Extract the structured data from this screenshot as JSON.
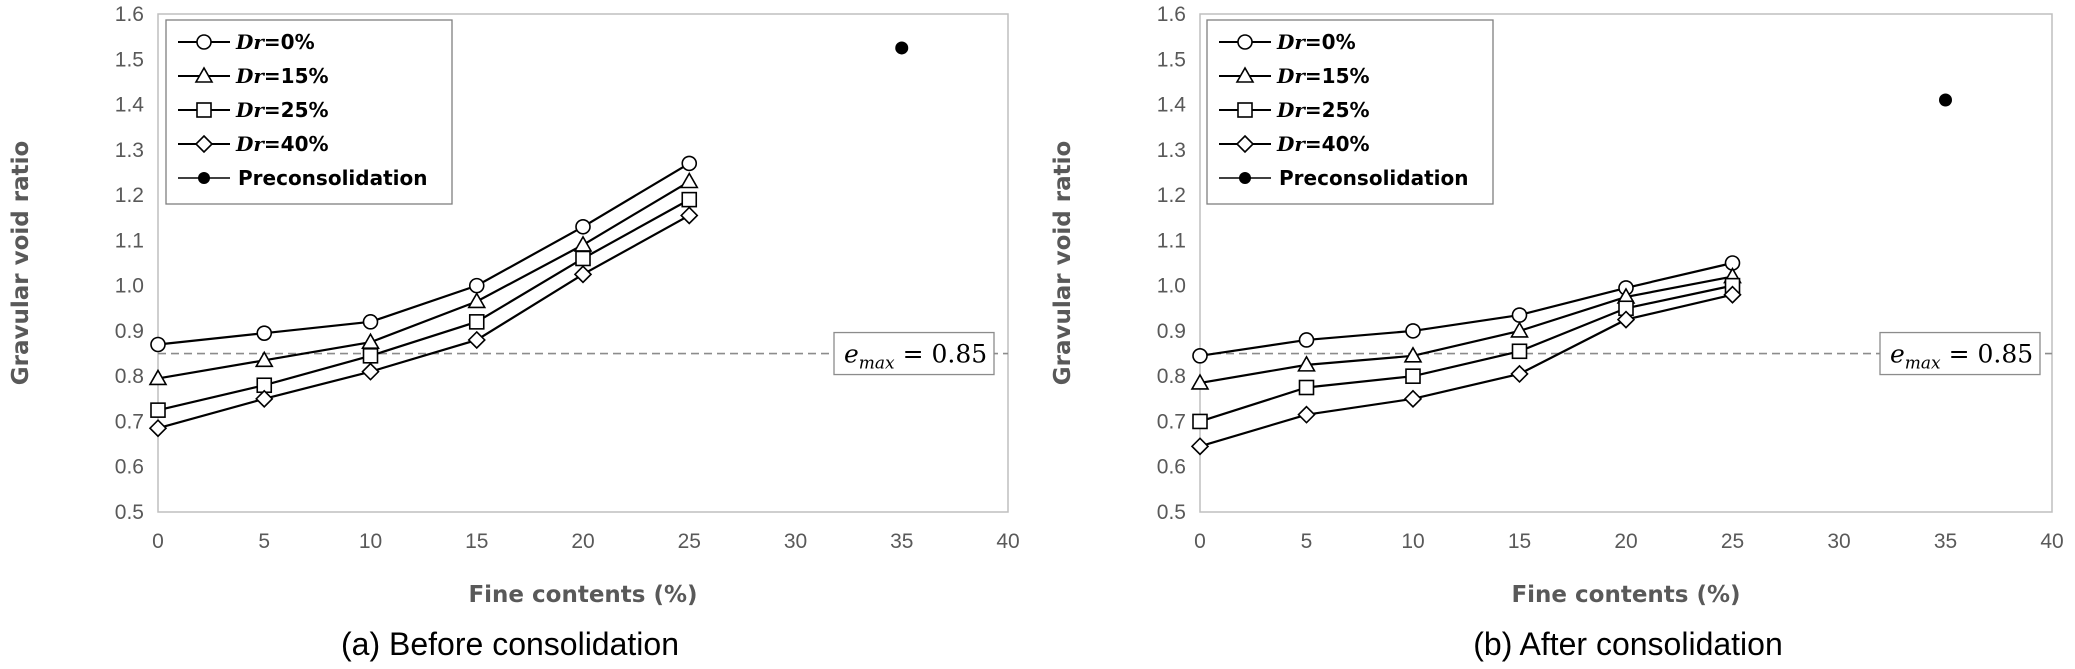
{
  "chart_data": [
    {
      "type": "line",
      "caption": "(a) Before consolidation",
      "xlabel": "Fine contents (%)",
      "ylabel": "Gravular void ratio",
      "xlim": [
        0,
        40
      ],
      "ylim": [
        0.5,
        1.6
      ],
      "xticks": [
        "0",
        "5",
        "10",
        "15",
        "20",
        "25",
        "30",
        "35",
        "40"
      ],
      "yticks": [
        "0.5",
        "0.6",
        "0.7",
        "0.8",
        "0.9",
        "1.0",
        "1.1",
        "1.2",
        "1.3",
        "1.4",
        "1.5",
        "1.6"
      ],
      "legend_position": "top-left",
      "x": [
        0,
        5,
        10,
        15,
        20,
        25
      ],
      "series": [
        {
          "name_var": "Dr",
          "name_rest": "=0%",
          "marker": "circle",
          "values": [
            0.87,
            0.895,
            0.92,
            1.0,
            1.13,
            1.27
          ]
        },
        {
          "name_var": "Dr",
          "name_rest": "=15%",
          "marker": "triangle",
          "values": [
            0.795,
            0.835,
            0.875,
            0.965,
            1.09,
            1.23
          ]
        },
        {
          "name_var": "Dr",
          "name_rest": "=25%",
          "marker": "square",
          "values": [
            0.725,
            0.78,
            0.845,
            0.92,
            1.06,
            1.19
          ]
        },
        {
          "name_var": "Dr",
          "name_rest": "=40%",
          "marker": "diamond",
          "values": [
            0.685,
            0.75,
            0.81,
            0.88,
            1.025,
            1.155
          ]
        }
      ],
      "preconsolidation": {
        "name": "Preconsolidation",
        "x": 35,
        "y": 1.525
      },
      "reference_line": {
        "y": 0.85,
        "label_main": "e",
        "label_sub": "max",
        "label_value": " = 0.85"
      }
    },
    {
      "type": "line",
      "caption": "(b) After consolidation",
      "xlabel": "Fine contents (%)",
      "ylabel": "Gravular void ratio",
      "xlim": [
        0,
        40
      ],
      "ylim": [
        0.5,
        1.6
      ],
      "xticks": [
        "0",
        "5",
        "10",
        "15",
        "20",
        "25",
        "30",
        "35",
        "40"
      ],
      "yticks": [
        "0.5",
        "0.6",
        "0.7",
        "0.8",
        "0.9",
        "1.0",
        "1.1",
        "1.2",
        "1.3",
        "1.4",
        "1.5",
        "1.6"
      ],
      "legend_position": "top-left",
      "x": [
        0,
        5,
        10,
        15,
        20,
        25
      ],
      "series": [
        {
          "name_var": "Dr",
          "name_rest": "=0%",
          "marker": "circle",
          "values": [
            0.845,
            0.88,
            0.9,
            0.935,
            0.995,
            1.05
          ]
        },
        {
          "name_var": "Dr",
          "name_rest": "=15%",
          "marker": "triangle",
          "values": [
            0.785,
            0.825,
            0.845,
            0.9,
            0.975,
            1.02
          ]
        },
        {
          "name_var": "Dr",
          "name_rest": "=25%",
          "marker": "square",
          "values": [
            0.7,
            0.775,
            0.8,
            0.855,
            0.95,
            1.0
          ]
        },
        {
          "name_var": "Dr",
          "name_rest": "=40%",
          "marker": "diamond",
          "values": [
            0.645,
            0.715,
            0.75,
            0.805,
            0.925,
            0.98
          ]
        }
      ],
      "preconsolidation": {
        "name": "Preconsolidation",
        "x": 35,
        "y": 1.41
      },
      "reference_line": {
        "y": 0.85,
        "label_main": "e",
        "label_sub": "max",
        "label_value": " = 0.85"
      }
    }
  ]
}
